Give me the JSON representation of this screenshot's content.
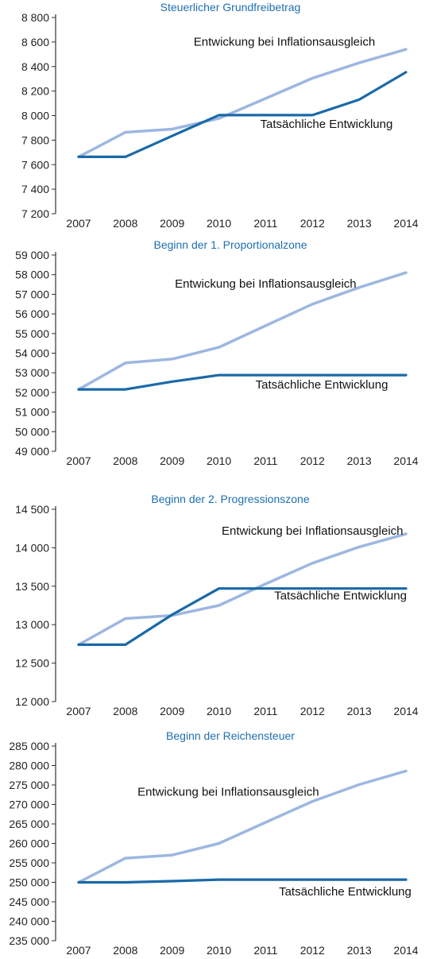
{
  "chart_data": [
    {
      "type": "line",
      "title": "Steuerlicher Grundfreibetrag",
      "categories": [
        "2007",
        "2008",
        "2009",
        "2010",
        "2011",
        "2012",
        "2013",
        "2014"
      ],
      "ylim": [
        7200,
        8800
      ],
      "yticks": [
        7200,
        7400,
        7600,
        7800,
        8000,
        8200,
        8400,
        8600,
        8800
      ],
      "ytick_labels": [
        "7 200",
        "7 400",
        "7 600",
        "7 800",
        "8 000",
        "8 200",
        "8 400",
        "8 600",
        "8 800"
      ],
      "series": [
        {
          "key": "inflation",
          "color": "#9db7e0",
          "values": [
            7664,
            7864,
            7890,
            7977,
            8140,
            8305,
            8430,
            8540
          ]
        },
        {
          "key": "actual",
          "color": "#1a69a8",
          "values": [
            7664,
            7664,
            7834,
            8004,
            8004,
            8004,
            8130,
            8354
          ]
        }
      ],
      "annotations": [
        {
          "text": "Entwickung bei Inflationsausgleich",
          "x": 2011.4,
          "y": 8570,
          "anchor": "middle"
        },
        {
          "text": "Tatsächliche Entwicklung",
          "x": 2012.3,
          "y": 7900,
          "anchor": "middle"
        }
      ]
    },
    {
      "type": "line",
      "title": "Beginn der 1. Proportionalzone",
      "categories": [
        "2007",
        "2008",
        "2009",
        "2010",
        "2011",
        "2012",
        "2013",
        "2014"
      ],
      "ylim": [
        49000,
        59000
      ],
      "yticks": [
        49000,
        50000,
        51000,
        52000,
        53000,
        54000,
        55000,
        56000,
        57000,
        58000,
        59000
      ],
      "ytick_labels": [
        "49 000",
        "50 000",
        "51 000",
        "52 000",
        "53 000",
        "54 000",
        "55 000",
        "56 000",
        "57 000",
        "58 000",
        "59 000"
      ],
      "series": [
        {
          "key": "inflation",
          "color": "#9db7e0",
          "values": [
            52152,
            53500,
            53700,
            54300,
            55400,
            56500,
            57350,
            58100
          ]
        },
        {
          "key": "actual",
          "color": "#1a69a8",
          "values": [
            52152,
            52152,
            52551,
            52882,
            52882,
            52882,
            52882,
            52882
          ]
        }
      ],
      "annotations": [
        {
          "text": "Entwickung bei Inflationsausgleich",
          "x": 2011.0,
          "y": 57350,
          "anchor": "middle"
        },
        {
          "text": "Tatsächliche Entwicklung",
          "x": 2012.2,
          "y": 52200,
          "anchor": "middle"
        }
      ]
    },
    {
      "type": "line",
      "title": "Beginn der 2. Progressionszone",
      "categories": [
        "2007",
        "2008",
        "2009",
        "2010",
        "2011",
        "2012",
        "2013",
        "2014"
      ],
      "ylim": [
        12000,
        14500
      ],
      "yticks": [
        12000,
        12500,
        13000,
        13500,
        14000,
        14500
      ],
      "ytick_labels": [
        "12 000",
        "12 500",
        "13 000",
        "13 500",
        "14 000",
        "14 500"
      ],
      "series": [
        {
          "key": "inflation",
          "color": "#9db7e0",
          "values": [
            12740,
            13080,
            13120,
            13250,
            13530,
            13800,
            14010,
            14180
          ]
        },
        {
          "key": "actual",
          "color": "#1a69a8",
          "values": [
            12740,
            12740,
            13130,
            13470,
            13470,
            13470,
            13470,
            13470
          ]
        }
      ],
      "annotations": [
        {
          "text": "Entwickung bei Inflationsausgleich",
          "x": 2012.0,
          "y": 14170,
          "anchor": "middle"
        },
        {
          "text": "Tatsächliche Entwicklung",
          "x": 2012.6,
          "y": 13330,
          "anchor": "middle"
        }
      ]
    },
    {
      "type": "line",
      "title": "Beginn der Reichensteuer",
      "categories": [
        "2007",
        "2008",
        "2009",
        "2010",
        "2011",
        "2012",
        "2013",
        "2014"
      ],
      "ylim": [
        235000,
        285000
      ],
      "yticks": [
        235000,
        240000,
        245000,
        250000,
        255000,
        260000,
        265000,
        270000,
        275000,
        280000,
        285000
      ],
      "ytick_labels": [
        "235 000",
        "240 000",
        "245 000",
        "250 000",
        "255 000",
        "260 000",
        "265 000",
        "270 000",
        "275 000",
        "280 000",
        "285 000"
      ],
      "series": [
        {
          "key": "inflation",
          "color": "#9db7e0",
          "values": [
            250000,
            256200,
            257000,
            260000,
            265400,
            270800,
            275100,
            278600
          ]
        },
        {
          "key": "actual",
          "color": "#1a69a8",
          "values": [
            250000,
            250000,
            250300,
            250700,
            250700,
            250700,
            250700,
            250700
          ]
        }
      ],
      "annotations": [
        {
          "text": "Entwickung bei Inflationsausgleich",
          "x": 2010.2,
          "y": 272200,
          "anchor": "middle"
        },
        {
          "text": "Tatsächliche Entwicklung",
          "x": 2012.7,
          "y": 246600,
          "anchor": "middle"
        }
      ]
    }
  ]
}
